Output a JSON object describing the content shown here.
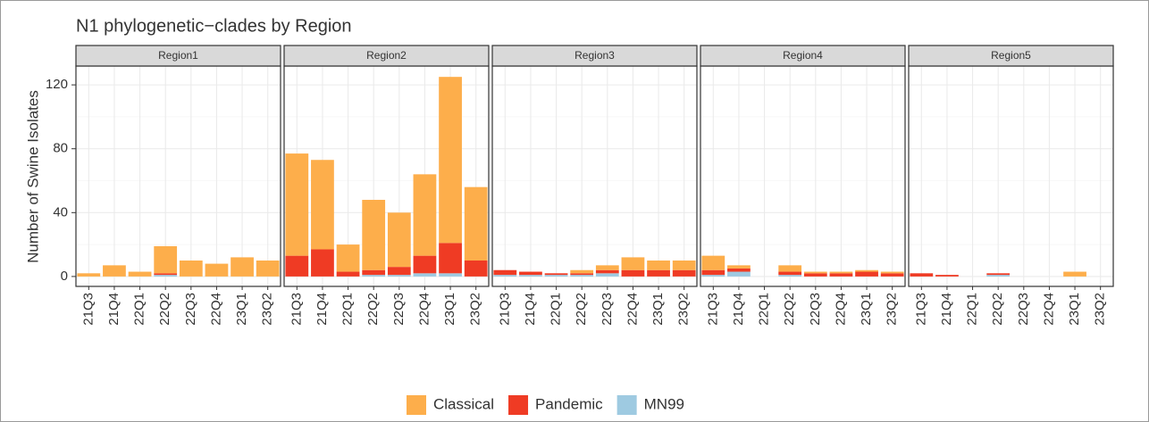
{
  "chart_data": {
    "type": "bar",
    "stacked": true,
    "title": "N1 phylogenetic−clades by Region",
    "y_label": "Number of Swine Isolates",
    "ylim": [
      -6.2,
      131.8
    ],
    "yticks": [
      0,
      40,
      80,
      120
    ],
    "grid": true,
    "legend": "bottom",
    "series": [
      {
        "name": "Classical",
        "color": "#fdae4b"
      },
      {
        "name": "Pandemic",
        "color": "#ef3b24"
      },
      {
        "name": "MN99",
        "color": "#9ecae1"
      }
    ],
    "panels": [
      {
        "title": "Region1",
        "categories": [
          "21Q3",
          "21Q4",
          "22Q1",
          "22Q2",
          "22Q3",
          "22Q4",
          "23Q1",
          "23Q2"
        ],
        "values": [
          [
            2,
            7,
            3,
            17,
            10,
            8,
            12,
            10
          ],
          [
            0,
            0,
            0,
            1,
            0,
            0,
            0,
            0
          ],
          [
            0,
            0,
            0,
            1,
            0,
            0,
            0,
            0
          ]
        ]
      },
      {
        "title": "Region2",
        "categories": [
          "21Q3",
          "21Q4",
          "22Q1",
          "22Q2",
          "22Q3",
          "22Q4",
          "23Q1",
          "23Q2"
        ],
        "values": [
          [
            64,
            56,
            17,
            44,
            34,
            51,
            104,
            46
          ],
          [
            13,
            17,
            3,
            3,
            5,
            11,
            19,
            10
          ],
          [
            0,
            0,
            0,
            1,
            1,
            2,
            2,
            0
          ]
        ]
      },
      {
        "title": "Region3",
        "categories": [
          "21Q3",
          "21Q4",
          "22Q1",
          "22Q2",
          "22Q3",
          "22Q4",
          "23Q1",
          "23Q2"
        ],
        "values": [
          [
            0,
            0,
            0,
            2,
            3,
            8,
            6,
            6
          ],
          [
            3,
            2,
            1,
            1,
            2,
            4,
            4,
            4
          ],
          [
            1,
            1,
            1,
            1,
            2,
            0,
            0,
            0
          ]
        ]
      },
      {
        "title": "Region4",
        "categories": [
          "21Q3",
          "21Q4",
          "22Q1",
          "22Q2",
          "22Q3",
          "22Q4",
          "23Q1",
          "23Q2"
        ],
        "values": [
          [
            9,
            2,
            0,
            4,
            1,
            1,
            1,
            1
          ],
          [
            3,
            2,
            0,
            2,
            2,
            2,
            3,
            2
          ],
          [
            1,
            3,
            0,
            1,
            0,
            0,
            0,
            0
          ]
        ]
      },
      {
        "title": "Region5",
        "categories": [
          "21Q3",
          "21Q4",
          "22Q1",
          "22Q2",
          "22Q3",
          "22Q4",
          "23Q1",
          "23Q2"
        ],
        "values": [
          [
            0,
            0,
            0,
            0,
            0,
            0,
            3,
            0
          ],
          [
            2,
            1,
            0,
            1,
            0,
            0,
            0,
            0
          ],
          [
            0,
            0,
            0,
            1,
            0,
            0,
            0,
            0
          ]
        ]
      }
    ]
  }
}
